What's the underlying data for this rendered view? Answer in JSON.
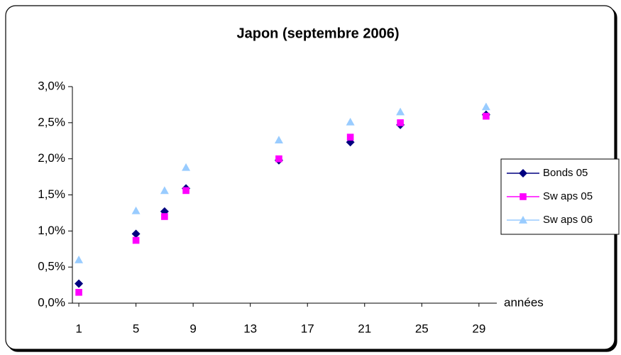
{
  "chart_data": {
    "type": "scatter",
    "title": "Japon (septembre 2006)",
    "x_label": "années",
    "xlim": [
      0.55,
      30.25
    ],
    "xticks": [
      1,
      5,
      9,
      13,
      17,
      21,
      25,
      29
    ],
    "ylim": [
      0,
      3
    ],
    "yticks": [
      {
        "value": 0,
        "label": "0,0%"
      },
      {
        "value": 0.5,
        "label": "0,5%"
      },
      {
        "value": 1,
        "label": "1,0%"
      },
      {
        "value": 1.5,
        "label": "1,5%"
      },
      {
        "value": 2,
        "label": "2,0%"
      },
      {
        "value": 2.5,
        "label": "2,5%"
      },
      {
        "value": 3,
        "label": "3,0%"
      }
    ],
    "grid": false,
    "legend": "right",
    "x": [
      1,
      5,
      7,
      8.5,
      15,
      20,
      23.5,
      29.5
    ],
    "series": [
      {
        "name": "Bonds 05",
        "color": "#000080",
        "marker": "diamond",
        "values": [
          0.27,
          0.96,
          1.27,
          1.59,
          1.98,
          2.23,
          2.47,
          2.61
        ]
      },
      {
        "name": "Sw aps 05",
        "color": "#ff00ff",
        "marker": "square",
        "values": [
          0.15,
          0.87,
          1.2,
          1.56,
          2.0,
          2.3,
          2.5,
          2.59
        ]
      },
      {
        "name": "Sw aps 06",
        "color": "#99ccff",
        "marker": "triangle",
        "values": [
          0.6,
          1.28,
          1.56,
          1.88,
          2.26,
          2.51,
          2.65,
          2.72
        ]
      }
    ]
  }
}
